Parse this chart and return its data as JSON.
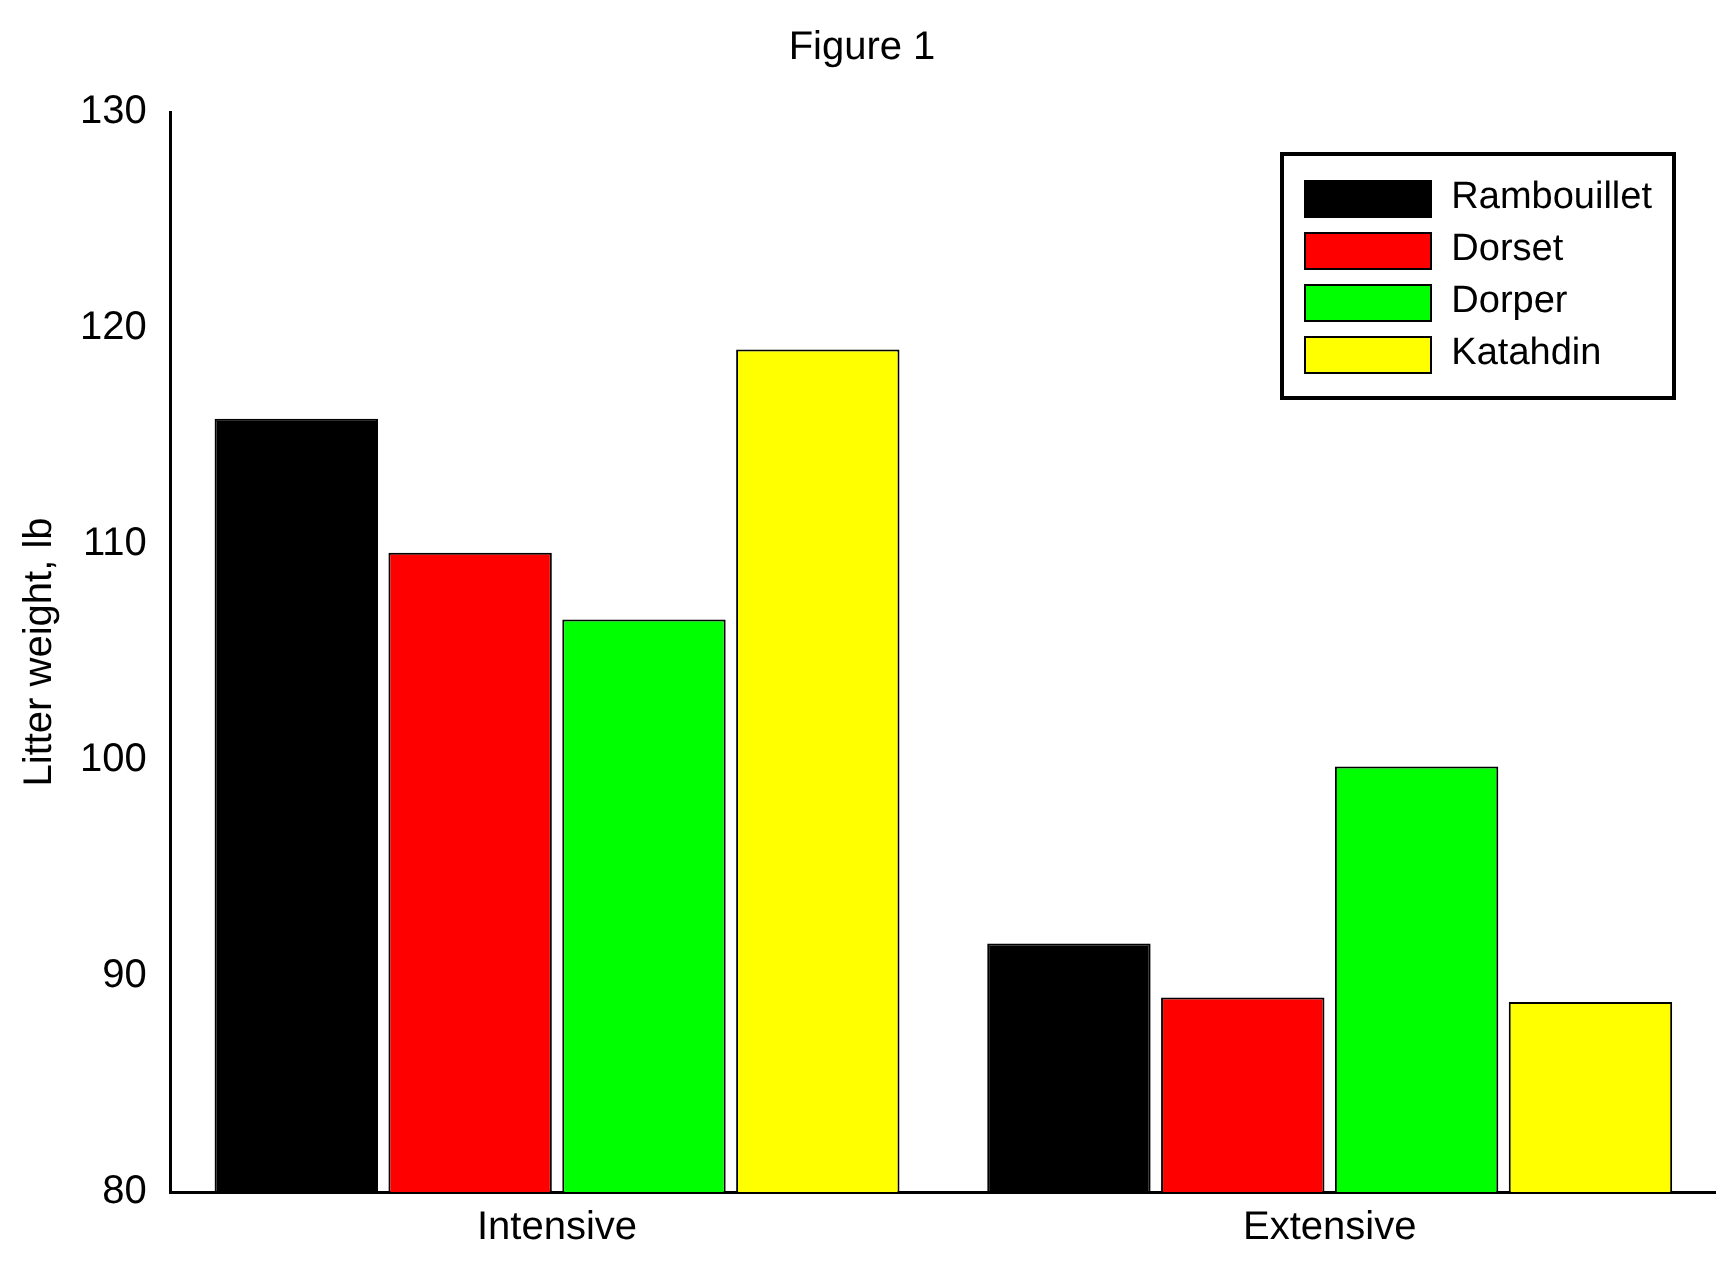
{
  "chart_data": {
    "type": "bar",
    "title": "Figure 1",
    "ylabel": "Litter weight, lb",
    "categories": [
      "Intensive",
      "Extensive"
    ],
    "series": [
      {
        "name": "Rambouillet",
        "color": "#000000",
        "values": [
          115.8,
          91.5
        ]
      },
      {
        "name": "Dorset",
        "color": "#ff0000",
        "values": [
          109.6,
          89.0
        ]
      },
      {
        "name": "Dorper",
        "color": "#00ff00",
        "values": [
          106.5,
          99.7
        ]
      },
      {
        "name": "Katahdin",
        "color": "#ffff00",
        "values": [
          119.0,
          88.8
        ]
      }
    ],
    "ylim": [
      80,
      130
    ],
    "yticks": [
      80,
      90,
      100,
      110,
      120,
      130
    ],
    "grid": false,
    "legend": "top right"
  }
}
